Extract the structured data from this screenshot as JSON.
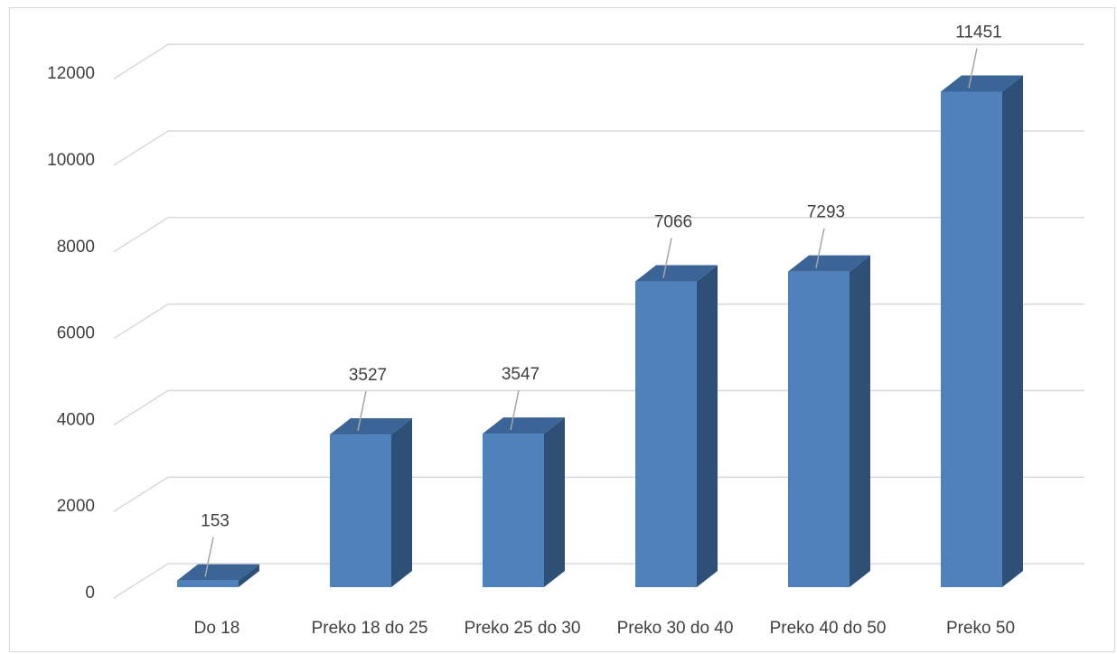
{
  "chart_data": {
    "type": "bar",
    "categories": [
      "Do 18",
      "Preko 18 do 25",
      "Preko 25 do 30",
      "Preko 30 do 40",
      "Preko 40 do 50",
      "Preko 50"
    ],
    "values": [
      153,
      3527,
      3547,
      7066,
      7293,
      11451
    ],
    "data_labels": [
      "153",
      "3527",
      "3547",
      "7066",
      "7293",
      "11451"
    ],
    "y_ticks": [
      "0",
      "2000",
      "4000",
      "6000",
      "8000",
      "10000",
      "12000"
    ],
    "ylim": [
      0,
      12000
    ],
    "grid": true,
    "legend": "none",
    "style": "3d-column",
    "colors": {
      "bar_front": "#4f81bd",
      "bar_side": "#2f5076",
      "bar_top": "#3b6596",
      "grid": "#d9d9d9",
      "text": "#404040",
      "leader": "#a6a6a6"
    }
  }
}
